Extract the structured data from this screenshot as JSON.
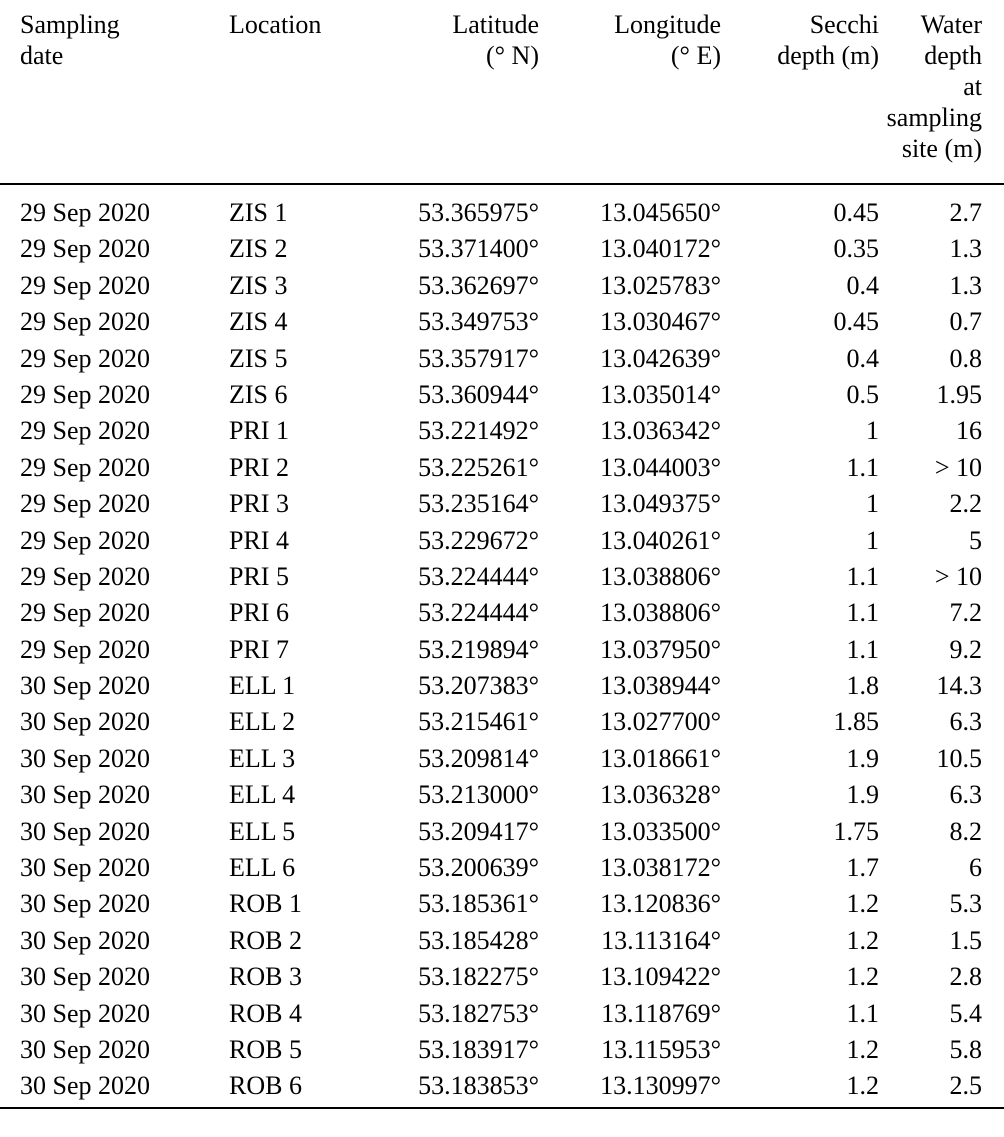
{
  "table": {
    "headers": [
      [
        "Sampling",
        "date"
      ],
      [
        "Location"
      ],
      [
        "Latitude",
        "(° N)"
      ],
      [
        "Longitude",
        "(° E)"
      ],
      [
        "Secchi",
        "depth (m)"
      ],
      [
        "Water",
        "depth",
        "at",
        "sampling",
        "site (m)"
      ]
    ],
    "rows": [
      [
        "29 Sep 2020",
        "ZIS 1",
        "53.365975°",
        "13.045650°",
        "0.45",
        "2.7"
      ],
      [
        "29 Sep 2020",
        "ZIS 2",
        "53.371400°",
        "13.040172°",
        "0.35",
        "1.3"
      ],
      [
        "29 Sep 2020",
        "ZIS 3",
        "53.362697°",
        "13.025783°",
        "0.4",
        "1.3"
      ],
      [
        "29 Sep 2020",
        "ZIS 4",
        "53.349753°",
        "13.030467°",
        "0.45",
        "0.7"
      ],
      [
        "29 Sep 2020",
        "ZIS 5",
        "53.357917°",
        "13.042639°",
        "0.4",
        "0.8"
      ],
      [
        "29 Sep 2020",
        "ZIS 6",
        "53.360944°",
        "13.035014°",
        "0.5",
        "1.95"
      ],
      [
        "29 Sep 2020",
        "PRI 1",
        "53.221492°",
        "13.036342°",
        "1",
        "16"
      ],
      [
        "29 Sep 2020",
        "PRI 2",
        "53.225261°",
        "13.044003°",
        "1.1",
        "> 10"
      ],
      [
        "29 Sep 2020",
        "PRI 3",
        "53.235164°",
        "13.049375°",
        "1",
        "2.2"
      ],
      [
        "29 Sep 2020",
        "PRI 4",
        "53.229672°",
        "13.040261°",
        "1",
        "5"
      ],
      [
        "29 Sep 2020",
        "PRI 5",
        "53.224444°",
        "13.038806°",
        "1.1",
        "> 10"
      ],
      [
        "29 Sep 2020",
        "PRI 6",
        "53.224444°",
        "13.038806°",
        "1.1",
        "7.2"
      ],
      [
        "29 Sep 2020",
        "PRI 7",
        "53.219894°",
        "13.037950°",
        "1.1",
        "9.2"
      ],
      [
        "30 Sep 2020",
        "ELL 1",
        "53.207383°",
        "13.038944°",
        "1.8",
        "14.3"
      ],
      [
        "30 Sep 2020",
        "ELL 2",
        "53.215461°",
        "13.027700°",
        "1.85",
        "6.3"
      ],
      [
        "30 Sep 2020",
        "ELL 3",
        "53.209814°",
        "13.018661°",
        "1.9",
        "10.5"
      ],
      [
        "30 Sep 2020",
        "ELL 4",
        "53.213000°",
        "13.036328°",
        "1.9",
        "6.3"
      ],
      [
        "30 Sep 2020",
        "ELL 5",
        "53.209417°",
        "13.033500°",
        "1.75",
        "8.2"
      ],
      [
        "30 Sep 2020",
        "ELL 6",
        "53.200639°",
        "13.038172°",
        "1.7",
        "6"
      ],
      [
        "30 Sep 2020",
        "ROB 1",
        "53.185361°",
        "13.120836°",
        "1.2",
        "5.3"
      ],
      [
        "30 Sep 2020",
        "ROB 2",
        "53.185428°",
        "13.113164°",
        "1.2",
        "1.5"
      ],
      [
        "30 Sep 2020",
        "ROB 3",
        "53.182275°",
        "13.109422°",
        "1.2",
        "2.8"
      ],
      [
        "30 Sep 2020",
        "ROB 4",
        "53.182753°",
        "13.118769°",
        "1.1",
        "5.4"
      ],
      [
        "30 Sep 2020",
        "ROB 5",
        "53.183917°",
        "13.115953°",
        "1.2",
        "5.8"
      ],
      [
        "30 Sep 2020",
        "ROB 6",
        "53.183853°",
        "13.130997°",
        "1.2",
        "2.5"
      ]
    ]
  }
}
